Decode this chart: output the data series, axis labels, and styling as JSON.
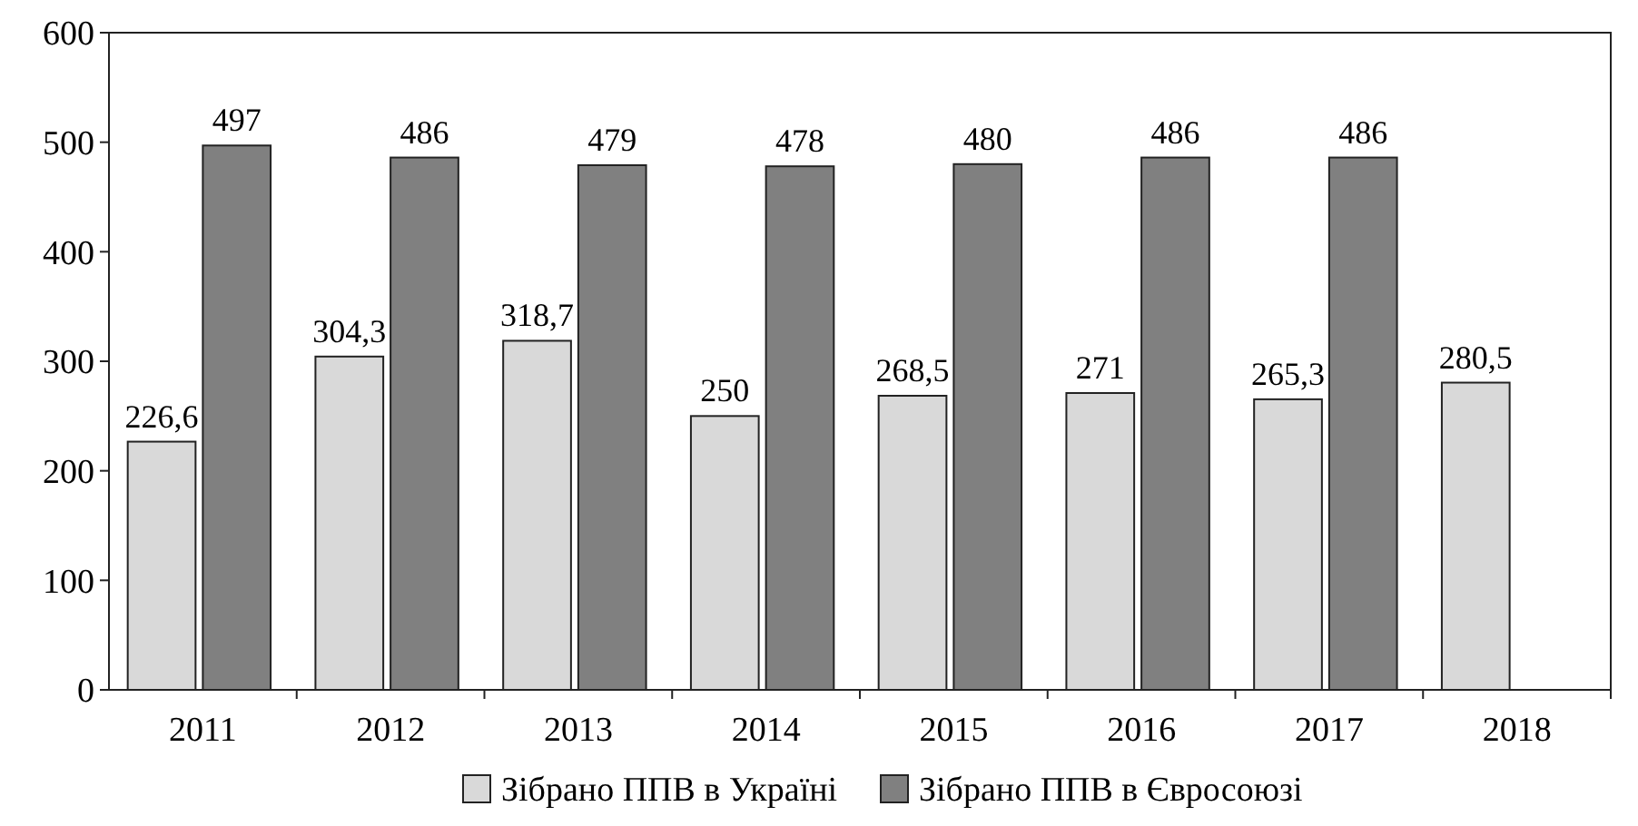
{
  "chart_data": {
    "type": "bar",
    "categories": [
      "2011",
      "2012",
      "2013",
      "2014",
      "2015",
      "2016",
      "2017",
      "2018"
    ],
    "series": [
      {
        "name": "Зібрано ППВ в Україні",
        "color": "#d9d9d9",
        "values": [
          226.6,
          304.3,
          318.7,
          250,
          268.5,
          271,
          265.3,
          280.5
        ],
        "value_labels": [
          "226,6",
          "304,3",
          "318,7",
          "250",
          "268,5",
          "271",
          "265,3",
          "280,5"
        ]
      },
      {
        "name": "Зібрано ППВ в Євросоюзі",
        "color": "#808080",
        "values": [
          497,
          486,
          479,
          478,
          480,
          486,
          486,
          null
        ],
        "value_labels": [
          "497",
          "486",
          "479",
          "478",
          "480",
          "486",
          "486",
          null
        ]
      }
    ],
    "ylim": [
      0,
      600
    ],
    "yticks": [
      0,
      100,
      200,
      300,
      400,
      500,
      600
    ],
    "grid": false,
    "legend": "bottom"
  }
}
